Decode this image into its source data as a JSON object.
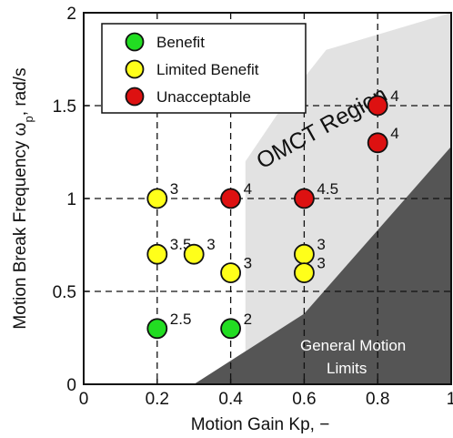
{
  "chart_data": {
    "type": "scatter",
    "xlabel": "Motion Gain Kp, −",
    "ylabel_main": "Motion Break Frequency ω",
    "ylabel_sub": "p",
    "ylabel_tail": ", rad/s",
    "xlim": [
      0,
      1
    ],
    "ylim": [
      0,
      2
    ],
    "x_ticks": [
      "0",
      "0.2",
      "0.4",
      "0.6",
      "0.8",
      "1"
    ],
    "y_ticks": [
      "0",
      "0.5",
      "1",
      "1.5",
      "2"
    ],
    "grid": "dashed",
    "legend_position": "top-left",
    "colors": {
      "Benefit": "#22dd22",
      "Limited Benefit": "#ffff1a",
      "Unacceptable": "#dd1111",
      "omct_region": "#e2e2e2",
      "general_motion_limits": "#555555"
    },
    "legend": [
      "Benefit",
      "Limited Benefit",
      "Unacceptable"
    ],
    "points": [
      {
        "x": 0.2,
        "y": 0.3,
        "category": "Benefit",
        "label": "2.5"
      },
      {
        "x": 0.4,
        "y": 0.3,
        "category": "Benefit",
        "label": "2"
      },
      {
        "x": 0.2,
        "y": 1.0,
        "category": "Limited Benefit",
        "label": "3"
      },
      {
        "x": 0.2,
        "y": 0.7,
        "category": "Limited Benefit",
        "label": "3.5"
      },
      {
        "x": 0.3,
        "y": 0.7,
        "category": "Limited Benefit",
        "label": "3"
      },
      {
        "x": 0.4,
        "y": 0.6,
        "category": "Limited Benefit",
        "label": "3"
      },
      {
        "x": 0.6,
        "y": 0.7,
        "category": "Limited Benefit",
        "label": "3"
      },
      {
        "x": 0.6,
        "y": 0.6,
        "category": "Limited Benefit",
        "label": "3"
      },
      {
        "x": 0.4,
        "y": 1.0,
        "category": "Unacceptable",
        "label": "4"
      },
      {
        "x": 0.6,
        "y": 1.0,
        "category": "Unacceptable",
        "label": "4.5"
      },
      {
        "x": 0.8,
        "y": 1.5,
        "category": "Unacceptable",
        "label": "4"
      },
      {
        "x": 0.8,
        "y": 1.3,
        "category": "Unacceptable",
        "label": "4"
      }
    ],
    "omct_region": {
      "label": "OMCT Region",
      "boundary": [
        [
          0.3,
          0
        ],
        [
          0.44,
          0
        ],
        [
          0.44,
          1.2
        ],
        [
          0.56,
          1.55
        ],
        [
          0.66,
          1.8
        ],
        [
          1,
          2
        ],
        [
          1,
          1.28
        ],
        [
          0.6,
          0.38
        ],
        [
          0.3,
          0
        ]
      ]
    },
    "general_motion_limits": {
      "label_line1": "General Motion",
      "label_line2": "Limits",
      "boundary": [
        [
          0.3,
          0
        ],
        [
          1,
          0
        ],
        [
          1,
          1.28
        ],
        [
          0.6,
          0.38
        ]
      ]
    }
  }
}
